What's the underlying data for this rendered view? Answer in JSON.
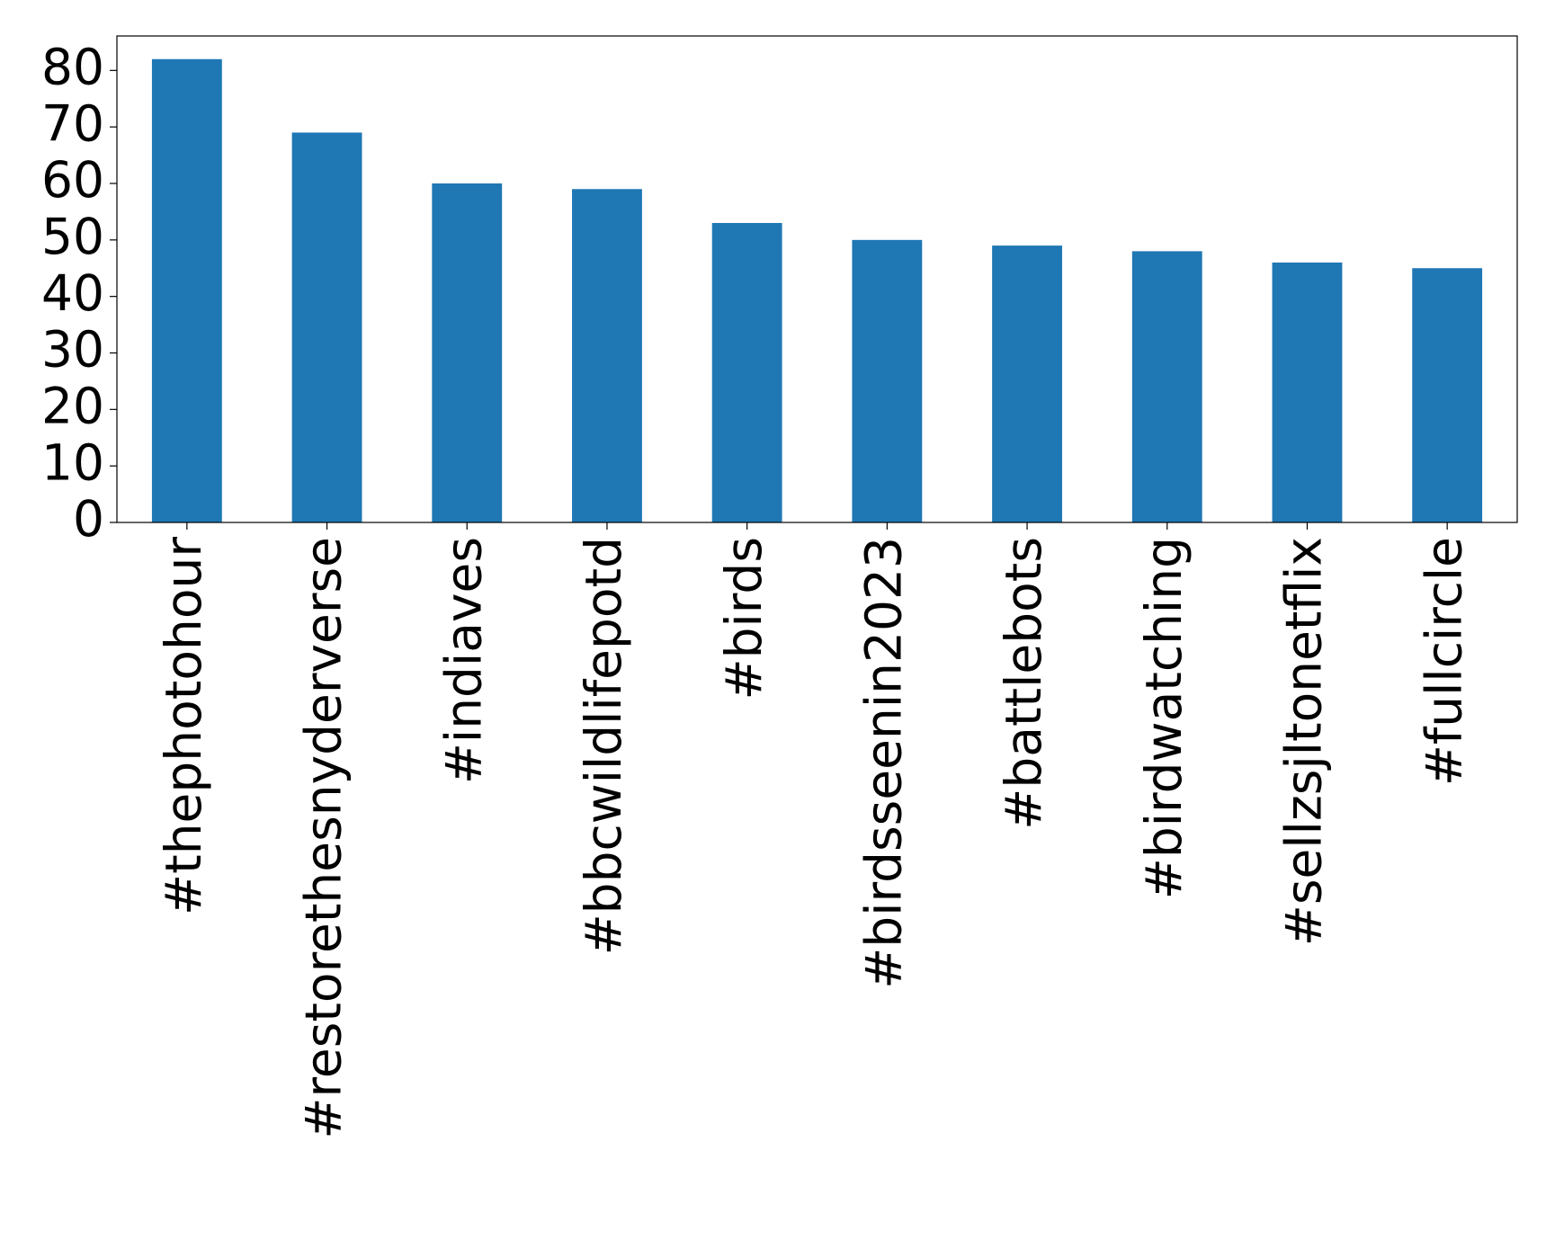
{
  "chart_data": {
    "type": "bar",
    "categories": [
      "#thephotohour",
      "#restorethesnyderverse",
      "#indiaves",
      "#bbcwildlifepotd",
      "#birds",
      "#birdsseenin2023",
      "#battlebots",
      "#birdwatching",
      "#sellzsjltonetflix",
      "#fullcircle"
    ],
    "values": [
      82,
      69,
      60,
      59,
      53,
      50,
      49,
      48,
      46,
      45
    ],
    "color": "#1f77b4",
    "ylim": [
      0,
      86.1
    ],
    "yticks": [
      0,
      10,
      20,
      30,
      40,
      50,
      60,
      70,
      80
    ],
    "grid": false
  }
}
